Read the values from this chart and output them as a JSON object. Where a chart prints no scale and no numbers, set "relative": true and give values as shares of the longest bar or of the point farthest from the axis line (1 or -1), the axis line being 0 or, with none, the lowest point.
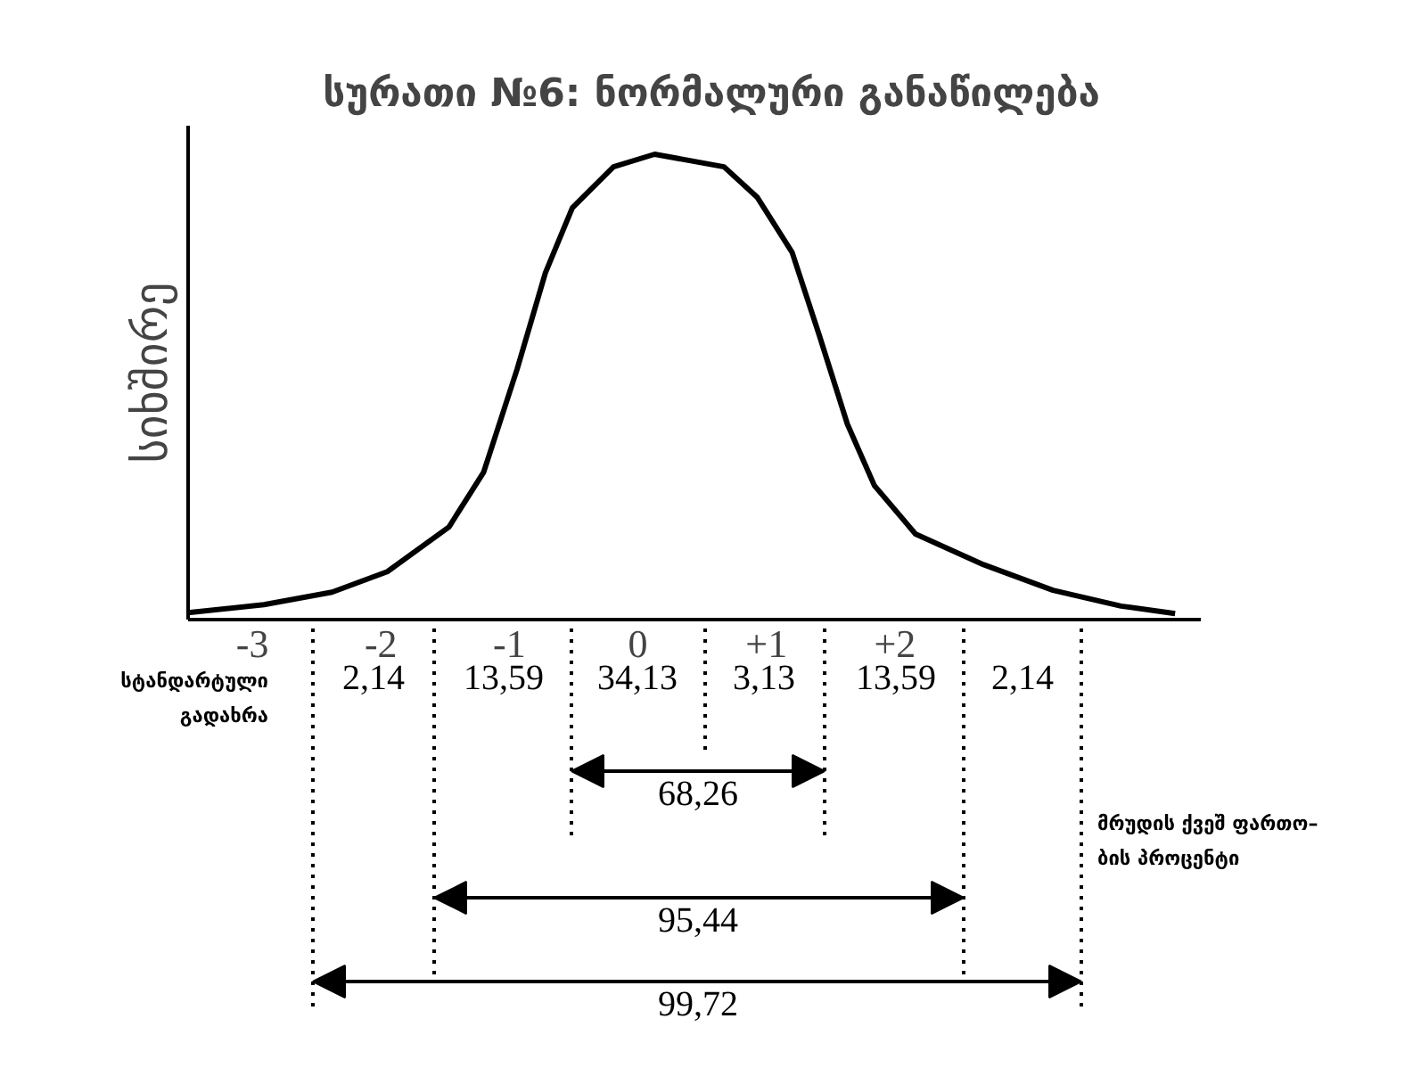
{
  "chart_data": {
    "type": "line",
    "title": "სურათი №6: ნორმალური განაწილება",
    "ylabel": "სიხშირე",
    "relative": true,
    "color": "#000000",
    "line_style": "solid",
    "marker": "none",
    "grid": false,
    "tick_labels": "x",
    "x": [
      -3.5,
      -2.91,
      -2.38,
      -1.95,
      -1.47,
      -1.2,
      -0.94,
      -0.72,
      -0.51,
      -0.19,
      0.13,
      0.67,
      0.93,
      1.2,
      1.41,
      1.63,
      1.84,
      2.16,
      2.69,
      3.23,
      3.76,
      4.18
    ],
    "values": [
      0.015,
      0.032,
      0.059,
      0.103,
      0.199,
      0.317,
      0.538,
      0.745,
      0.885,
      0.973,
      1.0,
      0.973,
      0.907,
      0.789,
      0.612,
      0.42,
      0.288,
      0.184,
      0.118,
      0.063,
      0.029,
      0.013
    ],
    "xlim": [
      -3.5,
      4.38
    ],
    "xticks": [
      {
        "value": -3,
        "label": "-3"
      },
      {
        "value": -2,
        "label": "-2"
      },
      {
        "value": -1,
        "label": "-1"
      },
      {
        "value": 0,
        "label": "0"
      },
      {
        "value": 1,
        "label": "+1"
      },
      {
        "value": 2,
        "label": "+2"
      }
    ],
    "annotations": [
      "სტანდარტული\nგადახრა",
      "2,14",
      "13,59",
      "34,13",
      "3,13",
      "13,59",
      "2,14",
      "68,26",
      "95,44",
      "99,72",
      "მრუდის ქვეშ ფართო–\nბის პროცენტი"
    ]
  }
}
